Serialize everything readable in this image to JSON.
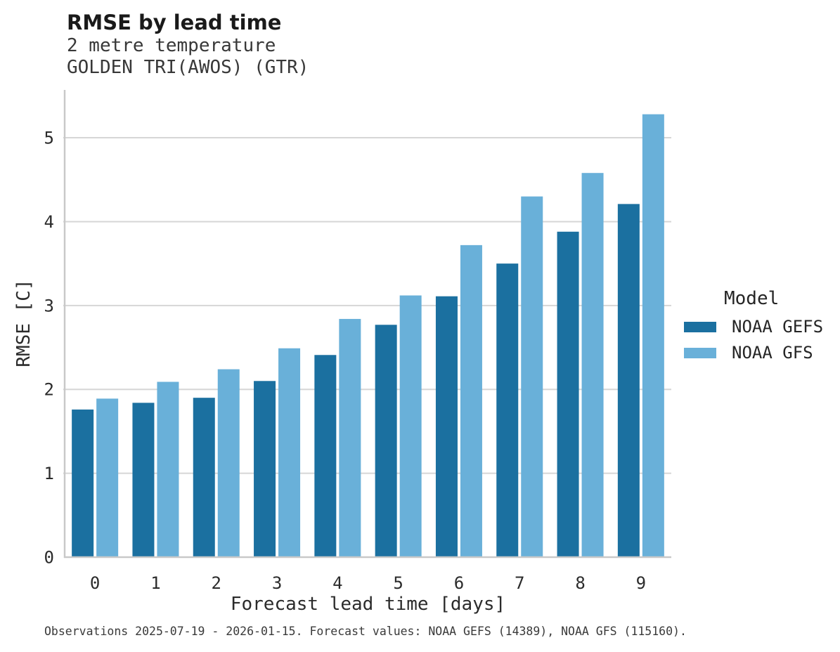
{
  "header": {
    "title": "RMSE by lead time",
    "subtitle_line1": "2 metre temperature",
    "subtitle_line2": "GOLDEN TRI(AWOS) (GTR)"
  },
  "chart_data": {
    "type": "bar",
    "title": "RMSE by lead time",
    "subtitle": "2 metre temperature — GOLDEN TRI(AWOS) (GTR)",
    "categories": [
      "0",
      "1",
      "2",
      "3",
      "4",
      "5",
      "6",
      "7",
      "8",
      "9"
    ],
    "series": [
      {
        "name": "NOAA GEFS",
        "color": "#1b70a0",
        "values": [
          1.76,
          1.84,
          1.9,
          2.1,
          2.41,
          2.77,
          3.11,
          3.5,
          3.88,
          4.21
        ]
      },
      {
        "name": "NOAA GFS",
        "color": "#69b0d9",
        "values": [
          1.89,
          2.09,
          2.24,
          2.49,
          2.84,
          3.12,
          3.72,
          4.3,
          4.58,
          5.28
        ]
      }
    ],
    "xlabel": "Forecast lead time [days]",
    "ylabel": "RMSE [C]",
    "ylim": [
      0,
      5.57
    ],
    "yticks": [
      0,
      1,
      2,
      3,
      4,
      5
    ],
    "grid": true,
    "legend_title": "Model",
    "legend_position": "right"
  },
  "colors": {
    "grid": "#d6d6d6",
    "axis": "#c9c9c9",
    "tick_text": "#2b2b2b"
  },
  "footer": {
    "text": "Observations 2025-07-19 - 2026-01-15. Forecast values: NOAA GEFS (14389), NOAA GFS (115160)."
  }
}
